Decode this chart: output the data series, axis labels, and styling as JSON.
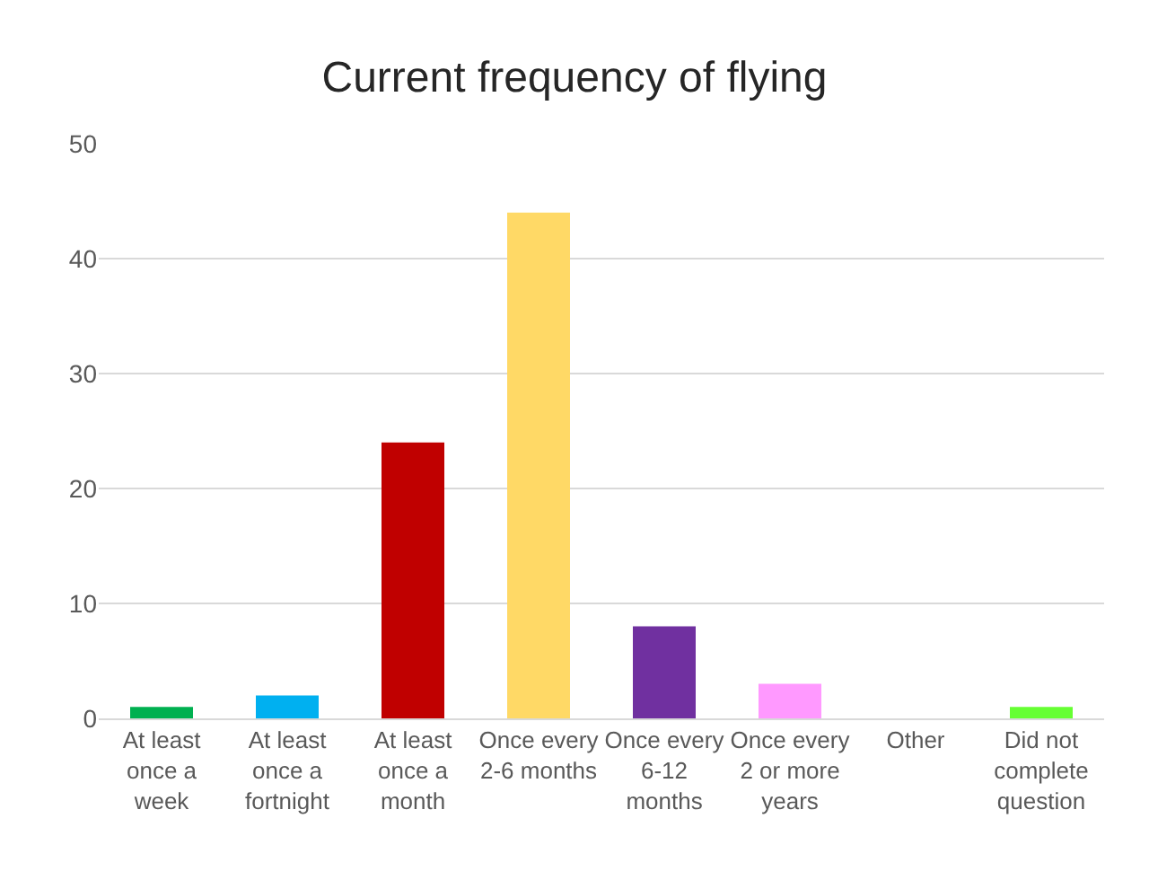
{
  "chart_data": {
    "type": "bar",
    "title": "Current frequency of flying",
    "categories": [
      "At least\nonce a\nweek",
      "At least\nonce a\nfortnight",
      "At least\nonce a\nmonth",
      "Once every\n2-6 months",
      "Once every\n6-12\nmonths",
      "Once every\n2 or more\nyears",
      "Other",
      "Did not\ncomplete\nquestion"
    ],
    "values": [
      1,
      2,
      24,
      44,
      8,
      3,
      0,
      1
    ],
    "colors": [
      "#00b050",
      "#00b0f0",
      "#c00000",
      "#ffd966",
      "#7030a0",
      "#ff99ff",
      "#a5a5a5",
      "#66ff33"
    ],
    "ylim": [
      0,
      50
    ],
    "yticks": [
      0,
      10,
      20,
      30,
      40,
      50
    ],
    "grid": "y"
  }
}
